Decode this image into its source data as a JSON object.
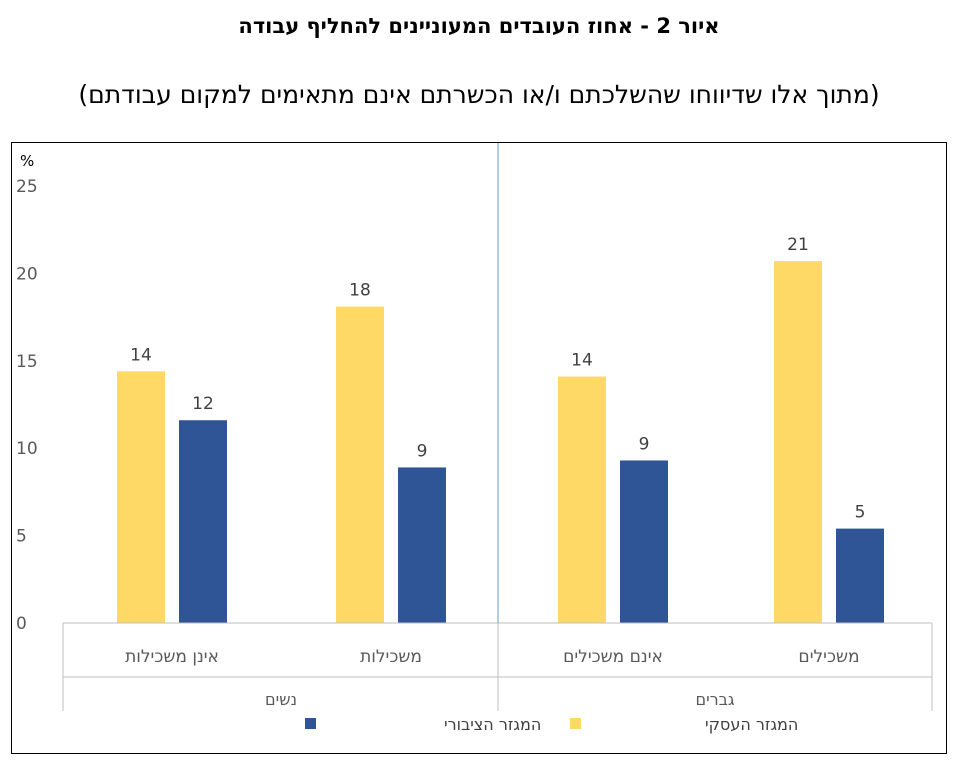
{
  "title": "איור 2  - אחוז העובדים המעוניינים להחליף עבודה",
  "subtitle": "(מתוך אלו שדיווחו שהשלכתם ו/או הכשרתם אינם מתאימים למקום עבודתם)",
  "chart_data": {
    "type": "bar",
    "ylabel": "%",
    "ylim": [
      0,
      25
    ],
    "yticks": [
      0,
      5,
      10,
      15,
      20,
      25
    ],
    "groups": [
      {
        "name": "גברים",
        "categories": [
          "משכילים",
          "אינם משכילים"
        ]
      },
      {
        "name": "נשים",
        "categories": [
          "משכילות",
          "אינן משכילות"
        ]
      }
    ],
    "categories": [
      "משכילים",
      "אינם משכילים",
      "משכילות",
      "אינן משכילות"
    ],
    "series": [
      {
        "name": "המגזר העסקי",
        "color": "#FFD966",
        "values": [
          20.7,
          14.1,
          18.1,
          14.4
        ],
        "labels": [
          "21",
          "14",
          "18",
          "14"
        ]
      },
      {
        "name": "המגזר הציבורי",
        "color": "#2F5597",
        "values": [
          5.4,
          9.3,
          8.9,
          11.6
        ],
        "labels": [
          "5",
          "9",
          "9",
          "12"
        ]
      }
    ],
    "legend_position": "bottom"
  }
}
